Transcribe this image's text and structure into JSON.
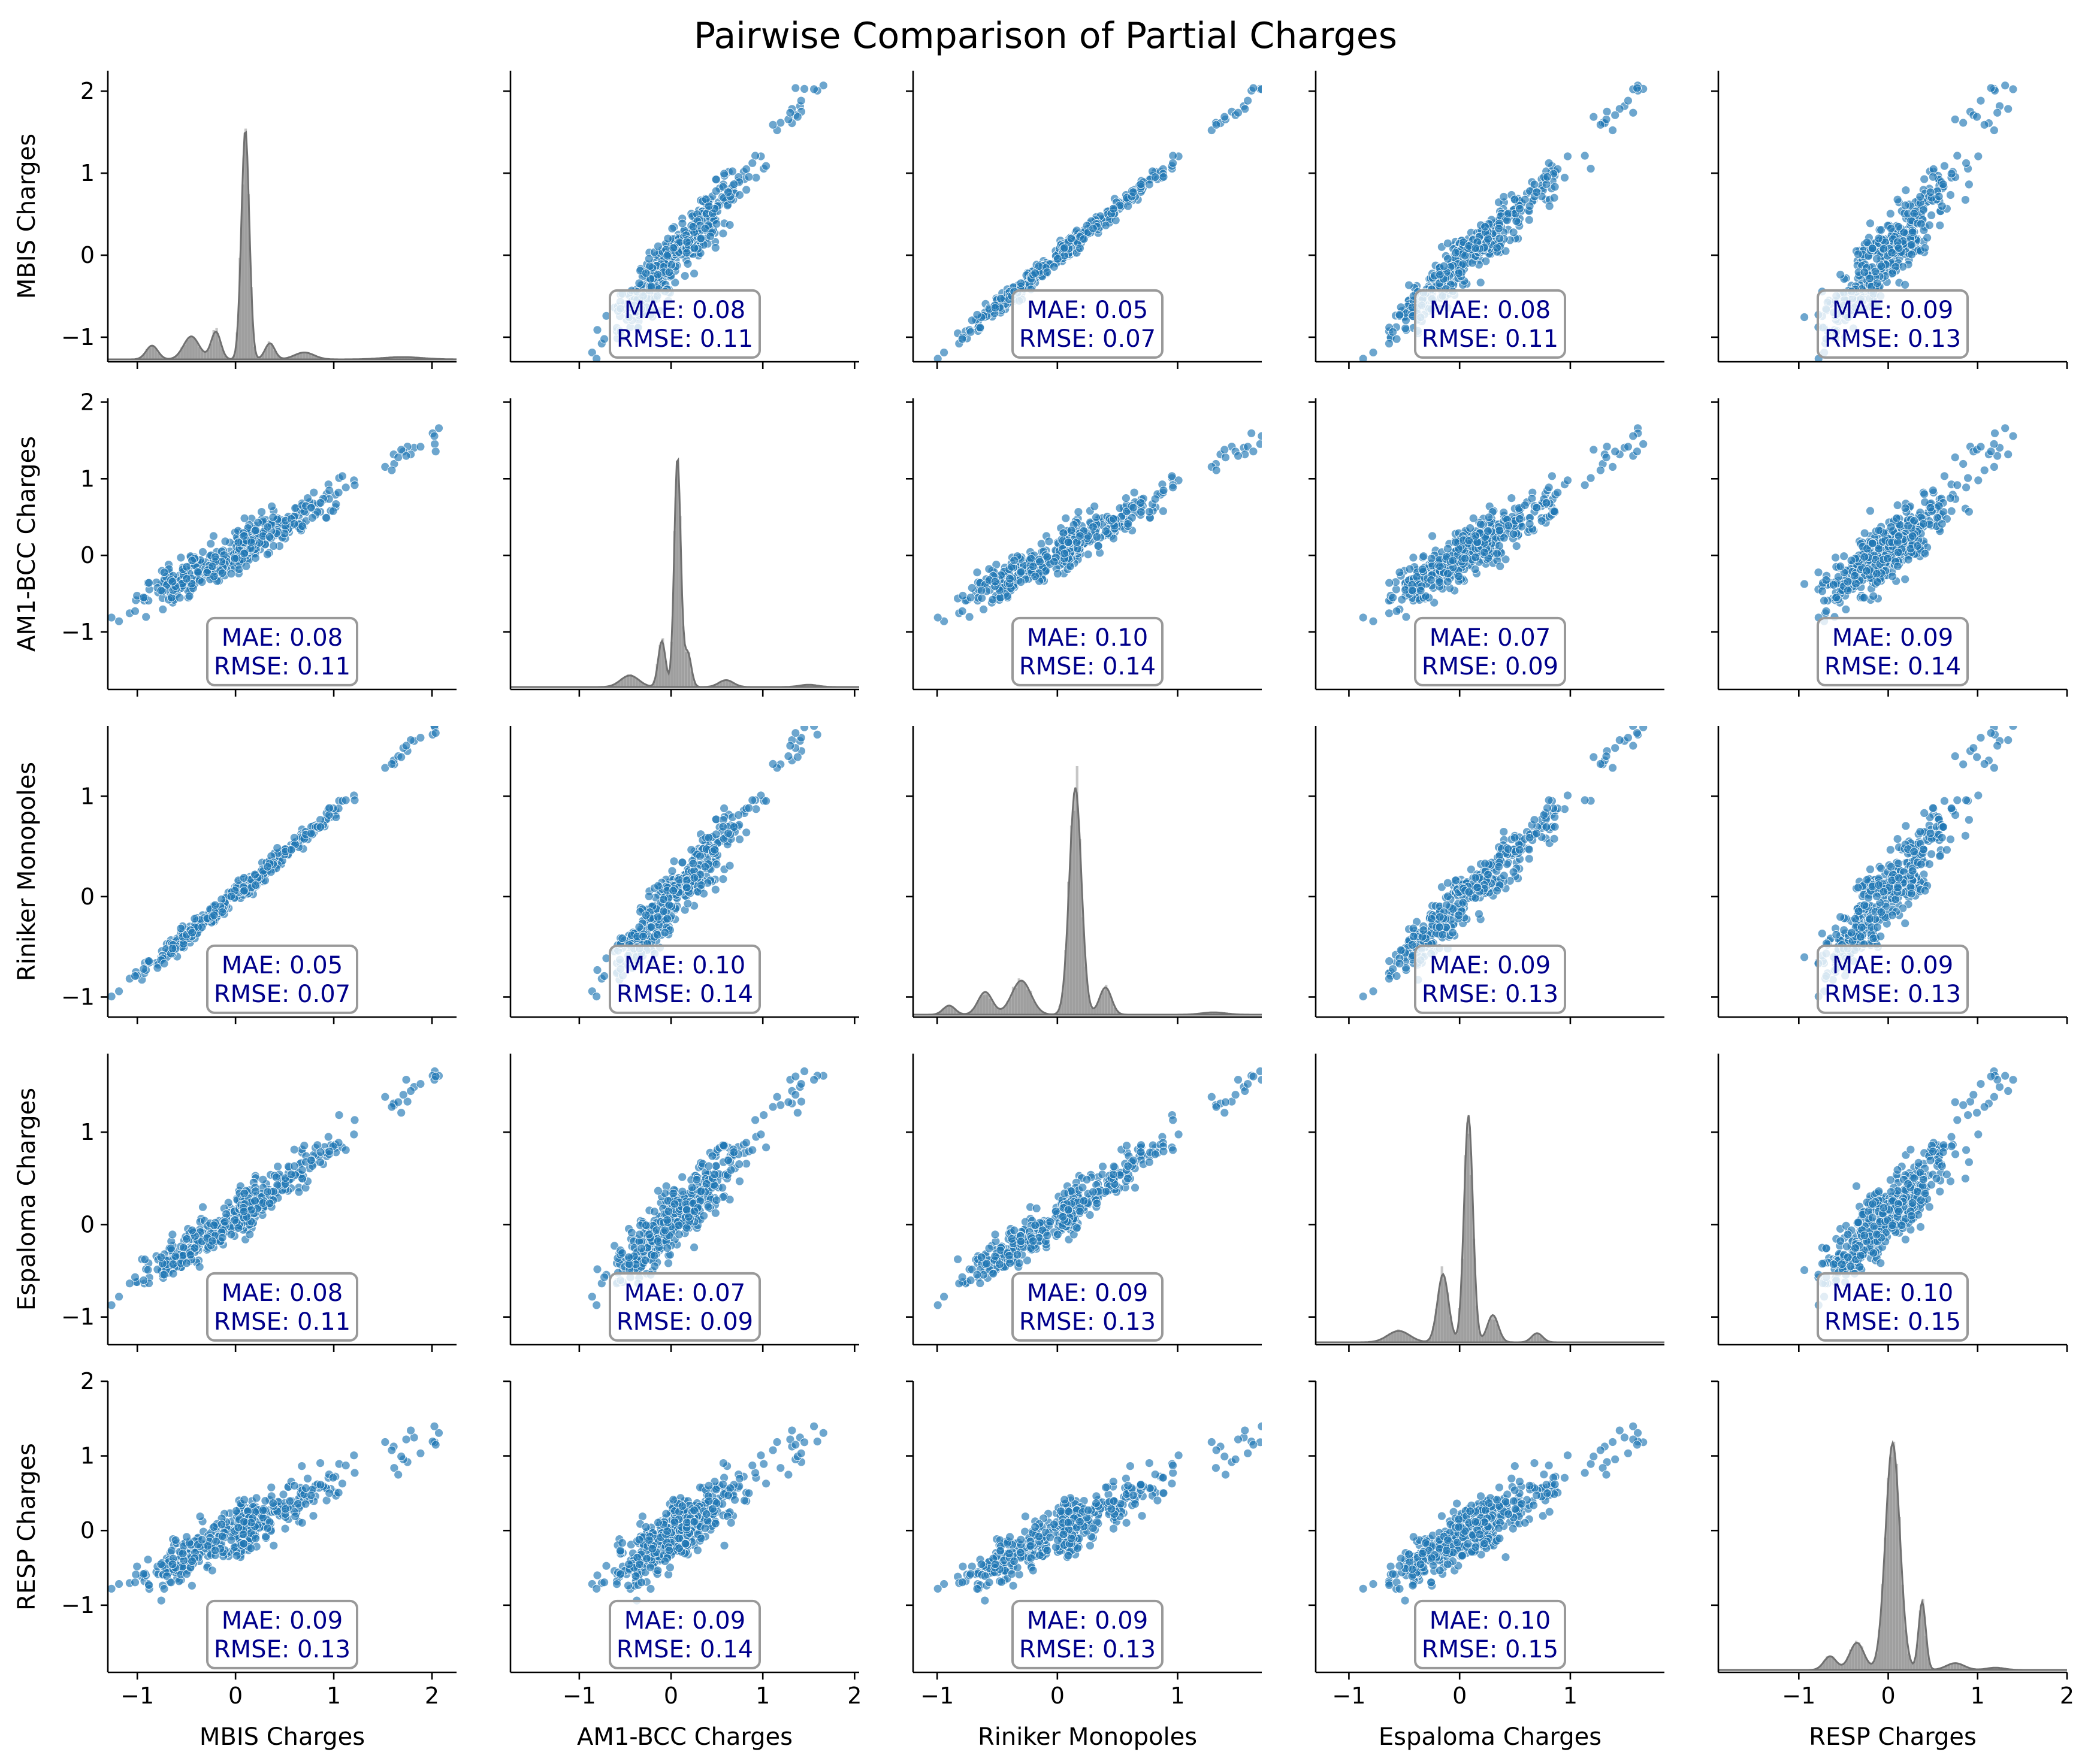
{
  "chart_data": {
    "type": "pairplot",
    "title": "Pairwise Comparison of Partial Charges",
    "variables": [
      "MBIS Charges",
      "AM1-BCC Charges",
      "Riniker Monopoles",
      "Espaloma Charges",
      "RESP Charges"
    ],
    "ranges": [
      [
        -1.3,
        2.25
      ],
      [
        -1.75,
        2.05
      ],
      [
        -1.2,
        1.7
      ],
      [
        -1.3,
        1.85
      ],
      [
        -1.9,
        2.0
      ]
    ],
    "ticks": [
      [
        -1,
        0,
        1,
        2
      ],
      [
        -1,
        0,
        1,
        2
      ],
      [
        -1,
        0,
        1
      ],
      [
        -1,
        0,
        1
      ],
      [
        -1,
        0,
        1,
        2
      ]
    ],
    "tick_labels": [
      [
        "−1",
        "0",
        "1",
        "2"
      ],
      [
        "−1",
        "0",
        "1",
        "2"
      ],
      [
        "−1",
        "0",
        "1"
      ],
      [
        "−1",
        "0",
        "1"
      ],
      [
        "−1",
        "0",
        "1",
        "2"
      ]
    ],
    "stats": [
      [
        null,
        {
          "mae": "MAE: 0.08",
          "rmse": "RMSE: 0.11"
        },
        {
          "mae": "MAE: 0.05",
          "rmse": "RMSE: 0.07"
        },
        {
          "mae": "MAE: 0.08",
          "rmse": "RMSE: 0.11"
        },
        {
          "mae": "MAE: 0.09",
          "rmse": "RMSE: 0.13"
        }
      ],
      [
        {
          "mae": "MAE: 0.08",
          "rmse": "RMSE: 0.11"
        },
        null,
        {
          "mae": "MAE: 0.10",
          "rmse": "RMSE: 0.14"
        },
        {
          "mae": "MAE: 0.07",
          "rmse": "RMSE: 0.09"
        },
        {
          "mae": "MAE: 0.09",
          "rmse": "RMSE: 0.14"
        }
      ],
      [
        {
          "mae": "MAE: 0.05",
          "rmse": "RMSE: 0.07"
        },
        {
          "mae": "MAE: 0.10",
          "rmse": "RMSE: 0.14"
        },
        null,
        {
          "mae": "MAE: 0.09",
          "rmse": "RMSE: 0.13"
        },
        {
          "mae": "MAE: 0.09",
          "rmse": "RMSE: 0.13"
        }
      ],
      [
        {
          "mae": "MAE: 0.08",
          "rmse": "RMSE: 0.11"
        },
        {
          "mae": "MAE: 0.07",
          "rmse": "RMSE: 0.09"
        },
        {
          "mae": "MAE: 0.09",
          "rmse": "RMSE: 0.13"
        },
        null,
        {
          "mae": "MAE: 0.10",
          "rmse": "RMSE: 0.15"
        }
      ],
      [
        {
          "mae": "MAE: 0.09",
          "rmse": "RMSE: 0.13"
        },
        {
          "mae": "MAE: 0.09",
          "rmse": "RMSE: 0.14"
        },
        {
          "mae": "MAE: 0.09",
          "rmse": "RMSE: 0.13"
        },
        {
          "mae": "MAE: 0.10",
          "rmse": "RMSE: 0.15"
        },
        null
      ]
    ],
    "diagonal": "histogram-kde",
    "grid": false,
    "colors": {
      "scatter": "#1f77b4",
      "scatter_edge": "#ffffff",
      "hist": "#808080",
      "stat_text": "#00008b",
      "stat_box_edge": "#999999"
    }
  }
}
